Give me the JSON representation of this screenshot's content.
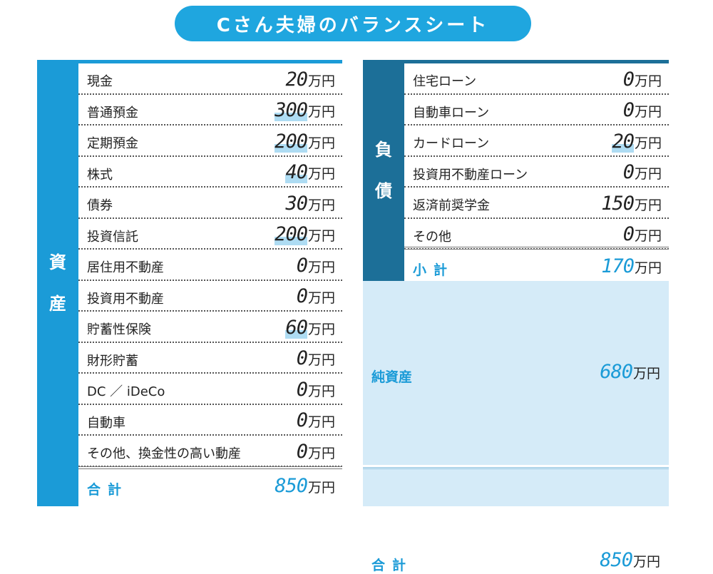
{
  "title": "Cさん夫婦のバランスシート",
  "assets": {
    "side_label": [
      "資",
      "産"
    ],
    "items": [
      {
        "label": "現金",
        "amount": "20",
        "unit": "万円",
        "highlight": false
      },
      {
        "label": "普通預金",
        "amount": "300",
        "unit": "万円",
        "highlight": true
      },
      {
        "label": "定期預金",
        "amount": "200",
        "unit": "万円",
        "highlight": true
      },
      {
        "label": "株式",
        "amount": "40",
        "unit": "万円",
        "highlight": true
      },
      {
        "label": "債券",
        "amount": "30",
        "unit": "万円",
        "highlight": false
      },
      {
        "label": "投資信託",
        "amount": "200",
        "unit": "万円",
        "highlight": true
      },
      {
        "label": "居住用不動産",
        "amount": "0",
        "unit": "万円",
        "highlight": false
      },
      {
        "label": "投資用不動産",
        "amount": "0",
        "unit": "万円",
        "highlight": false
      },
      {
        "label": "貯蓄性保険",
        "amount": "60",
        "unit": "万円",
        "highlight": true
      },
      {
        "label": "財形貯蓄",
        "amount": "0",
        "unit": "万円",
        "highlight": false
      },
      {
        "label": "DC ／ iDeCo",
        "amount": "0",
        "unit": "万円",
        "highlight": false
      },
      {
        "label": "自動車",
        "amount": "0",
        "unit": "万円",
        "highlight": false
      },
      {
        "label": "その他、換金性の高い動産",
        "amount": "0",
        "unit": "万円",
        "highlight": false
      }
    ],
    "total": {
      "label": "合計",
      "amount": "850",
      "unit": "万円"
    }
  },
  "liabilities": {
    "side_label": [
      "負",
      "債"
    ],
    "items": [
      {
        "label": "住宅ローン",
        "amount": "0",
        "unit": "万円",
        "highlight": false
      },
      {
        "label": "自動車ローン",
        "amount": "0",
        "unit": "万円",
        "highlight": false
      },
      {
        "label": "カードローン",
        "amount": "20",
        "unit": "万円",
        "highlight": true
      },
      {
        "label": "投資用不動産ローン",
        "amount": "0",
        "unit": "万円",
        "highlight": false
      },
      {
        "label": "返済前奨学金",
        "amount": "150",
        "unit": "万円",
        "highlight": false
      },
      {
        "label": "その他",
        "amount": "0",
        "unit": "万円",
        "highlight": false
      }
    ],
    "subtotal": {
      "label": "小計",
      "amount": "170",
      "unit": "万円"
    }
  },
  "net_assets": {
    "label": "純資産",
    "amount": "680",
    "unit": "万円"
  },
  "right_total": {
    "label": "合計",
    "amount": "850",
    "unit": "万円"
  },
  "colors": {
    "title_bg": "#1fa6df",
    "assets_bar": "#1b9bd7",
    "liab_bar": "#1c6f98",
    "net_bg": "#d5ebf8",
    "highlight": "#aedcf3"
  }
}
